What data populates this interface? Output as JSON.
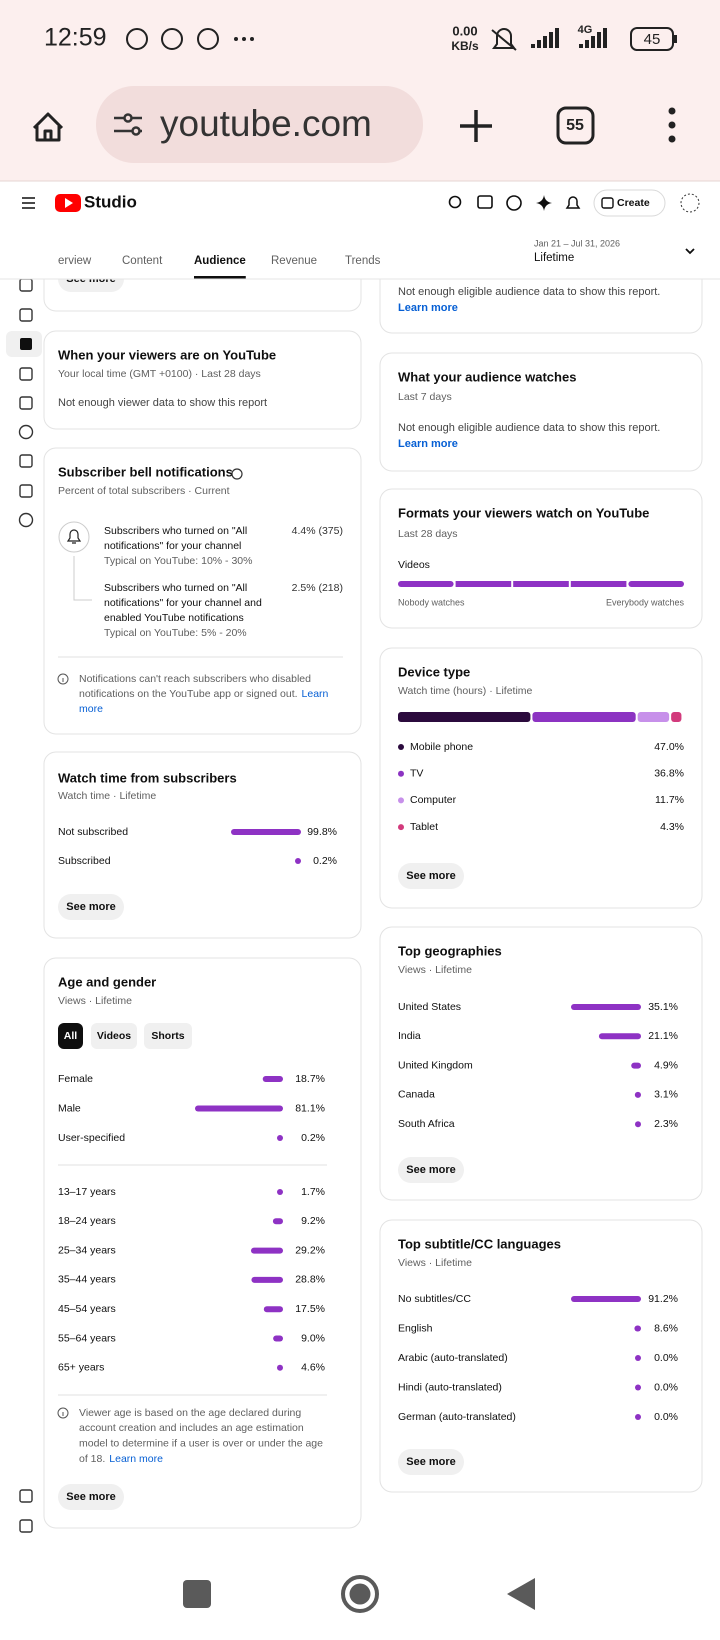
{
  "status_bar": {
    "time": "12:59",
    "speed": "0.00",
    "speed_unit": "KB/s",
    "network": "4G",
    "battery": "45"
  },
  "browser": {
    "url": "youtube.com",
    "tabs": "55"
  },
  "studio": {
    "logo": "Studio",
    "create": "Create"
  },
  "tabs": {
    "items": [
      "erview",
      "Content",
      "Audience",
      "Revenue",
      "Trends"
    ],
    "active": 2,
    "date_range": "Jan 21 – Jul 31, 2026",
    "period": "Lifetime"
  },
  "left": {
    "top_card": {
      "button": "See more"
    },
    "viewers_time": {
      "title": "When your viewers are on YouTube",
      "subtitle": "Your local time (GMT +0100) · Last 28 days",
      "message": "Not enough viewer data to show this report"
    },
    "bell": {
      "title": "Subscriber bell notifications",
      "subtitle": "Percent of total subscribers · Current",
      "items": [
        {
          "lines": [
            "Subscribers who turned on \"All",
            "notifications\" for your channel"
          ],
          "typical": "Typical on YouTube: 10% - 30%",
          "value": "4.4% (375)"
        },
        {
          "lines": [
            "Subscribers who turned on \"All",
            "notifications\" for your channel and",
            "enabled YouTube notifications"
          ],
          "typical": "Typical on YouTube: 5% - 20%",
          "value": "2.5% (218)"
        }
      ],
      "note": {
        "lines": [
          "Notifications can't reach subscribers who disabled",
          "notifications on the YouTube app or signed out."
        ],
        "link": [
          "Learn",
          "more"
        ]
      }
    },
    "watch_subs": {
      "title": "Watch time from subscribers",
      "subtitle": "Watch time · Lifetime",
      "rows": [
        {
          "label": "Not subscribed",
          "value": "99.8%"
        },
        {
          "label": "Subscribed",
          "value": "0.2%"
        }
      ],
      "button": "See more"
    },
    "age_gender": {
      "title": "Age and gender",
      "subtitle": "Views · Lifetime",
      "filters": [
        "All",
        "Videos",
        "Shorts"
      ],
      "active_filter": 0,
      "gender": [
        {
          "label": "Female",
          "value": "18.7%"
        },
        {
          "label": "Male",
          "value": "81.1%"
        },
        {
          "label": "User-specified",
          "value": "0.2%"
        }
      ],
      "age": [
        {
          "label": "13–17 years",
          "value": "1.7%"
        },
        {
          "label": "18–24 years",
          "value": "9.2%"
        },
        {
          "label": "25–34 years",
          "value": "29.2%"
        },
        {
          "label": "35–44 years",
          "value": "28.8%"
        },
        {
          "label": "45–54 years",
          "value": "17.5%"
        },
        {
          "label": "55–64 years",
          "value": "9.0%"
        },
        {
          "label": "65+ years",
          "value": "4.6%"
        }
      ],
      "note": {
        "lines": [
          "Viewer age is based on the age declared during",
          "account creation and includes an age estimation",
          "model to determine if a user is over or under the age",
          "of 18."
        ],
        "link": "Learn more"
      },
      "button": "See more"
    }
  },
  "right": {
    "top_card": {
      "message": "Not enough eligible audience data to show this report.",
      "link": "Learn more"
    },
    "audience_watches": {
      "title": "What your audience watches",
      "subtitle": "Last 7 days",
      "message": "Not enough eligible audience data to show this report.",
      "link": "Learn more"
    },
    "formats": {
      "title": "Formats your viewers watch on YouTube",
      "subtitle": "Last 28 days",
      "format": "Videos",
      "min_label": "Nobody watches",
      "max_label": "Everybody watches"
    },
    "device": {
      "title": "Device type",
      "subtitle": "Watch time (hours) · Lifetime",
      "rows": [
        {
          "label": "Mobile phone",
          "value": "47.0%",
          "color": "#2b0a3d"
        },
        {
          "label": "TV",
          "value": "36.8%",
          "color": "#8c33c2"
        },
        {
          "label": "Computer",
          "value": "11.7%",
          "color": "#c790ea"
        },
        {
          "label": "Tablet",
          "value": "4.3%",
          "color": "#d23a7c"
        }
      ],
      "button": "See more"
    },
    "geographies": {
      "title": "Top geographies",
      "subtitle": "Views · Lifetime",
      "rows": [
        {
          "label": "United States",
          "value": "35.1%"
        },
        {
          "label": "India",
          "value": "21.1%"
        },
        {
          "label": "United Kingdom",
          "value": "4.9%"
        },
        {
          "label": "Canada",
          "value": "3.1%"
        },
        {
          "label": "South Africa",
          "value": "2.3%"
        }
      ],
      "button": "See more"
    },
    "subtitles": {
      "title": "Top subtitle/CC languages",
      "subtitle": "Views · Lifetime",
      "rows": [
        {
          "label": "No subtitles/CC",
          "value": "91.2%"
        },
        {
          "label": "English",
          "value": "8.6%"
        },
        {
          "label": "Arabic (auto-translated)",
          "value": "0.0%"
        },
        {
          "label": "Hindi (auto-translated)",
          "value": "0.0%"
        },
        {
          "label": "German (auto-translated)",
          "value": "0.0%"
        }
      ],
      "button": "See more"
    }
  }
}
